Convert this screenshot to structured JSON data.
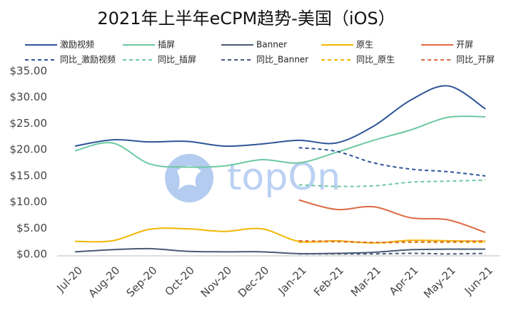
{
  "chart_data": {
    "type": "line",
    "title": "2021年上半年eCPM趋势-美国（iOS）",
    "watermark": "topOn",
    "categories": [
      "Jul-20",
      "Aug-20",
      "Sep-20",
      "Oct-20",
      "Nov-20",
      "Dec-20",
      "Jan-21",
      "Feb-21",
      "Mar-21",
      "Apr-21",
      "May-21",
      "Jun-21"
    ],
    "ylim": [
      0,
      35
    ],
    "yticks": [
      {
        "value": 0,
        "label": "$0.00"
      },
      {
        "value": 5,
        "label": "$5.00"
      },
      {
        "value": 10,
        "label": "$10.00"
      },
      {
        "value": 15,
        "label": "$15.00"
      },
      {
        "value": 20,
        "label": "$20.00"
      },
      {
        "value": 25,
        "label": "$25.00"
      },
      {
        "value": 30,
        "label": "$30.00"
      },
      {
        "value": 35,
        "label": "$35.00"
      }
    ],
    "grid": false,
    "legend": "top",
    "series": [
      {
        "name": "激励视频",
        "color": "#2f5597",
        "dashed": false,
        "values": [
          20.7,
          21.9,
          21.5,
          21.6,
          20.7,
          21.1,
          21.8,
          21.3,
          24.5,
          29.5,
          32.2,
          27.8
        ]
      },
      {
        "name": "插屏",
        "color": "#6cc9a1",
        "dashed": false,
        "values": [
          19.8,
          21.3,
          17.3,
          16.7,
          16.9,
          18.1,
          17.5,
          19.5,
          21.8,
          23.8,
          26.2,
          26.3
        ]
      },
      {
        "name": "Banner",
        "color": "#4a5a75",
        "dashed": false,
        "values": [
          0.5,
          0.9,
          1.1,
          0.6,
          0.5,
          0.5,
          0.15,
          0.2,
          0.4,
          0.9,
          1.0,
          1.0
        ]
      },
      {
        "name": "原生",
        "color": "#f2b705",
        "dashed": false,
        "values": [
          2.5,
          2.6,
          4.8,
          4.9,
          4.4,
          4.9,
          2.5,
          2.6,
          2.2,
          2.7,
          2.6,
          2.5
        ]
      },
      {
        "name": "开屏",
        "color": "#dd6b45",
        "dashed": false,
        "values": [
          null,
          null,
          null,
          null,
          null,
          null,
          10.4,
          8.6,
          9.1,
          7.0,
          6.6,
          4.2
        ]
      },
      {
        "name": "同比_激励视频",
        "color": "#2f5597",
        "dashed": true,
        "values": [
          null,
          null,
          null,
          null,
          null,
          null,
          20.4,
          19.7,
          17.5,
          16.3,
          15.8,
          15.0
        ]
      },
      {
        "name": "同比_插屏",
        "color": "#6cc9a1",
        "dashed": true,
        "values": [
          null,
          null,
          null,
          null,
          null,
          null,
          13.3,
          13.0,
          13.1,
          13.8,
          14.0,
          14.2
        ]
      },
      {
        "name": "同比_Banner",
        "color": "#4a5a75",
        "dashed": true,
        "values": [
          null,
          null,
          null,
          null,
          null,
          null,
          0.1,
          0.1,
          0.1,
          0.2,
          0.1,
          0.2
        ]
      },
      {
        "name": "同比_原生",
        "color": "#f2b705",
        "dashed": true,
        "values": [
          null,
          null,
          null,
          null,
          null,
          null,
          2.3,
          2.4,
          2.2,
          2.3,
          2.3,
          2.3
        ]
      },
      {
        "name": "同比_开屏",
        "color": "#dd6b45",
        "dashed": true,
        "values": [
          null,
          null,
          null,
          null,
          null,
          null,
          2.6,
          2.5,
          2.3,
          2.4,
          2.4,
          2.6
        ]
      }
    ]
  }
}
